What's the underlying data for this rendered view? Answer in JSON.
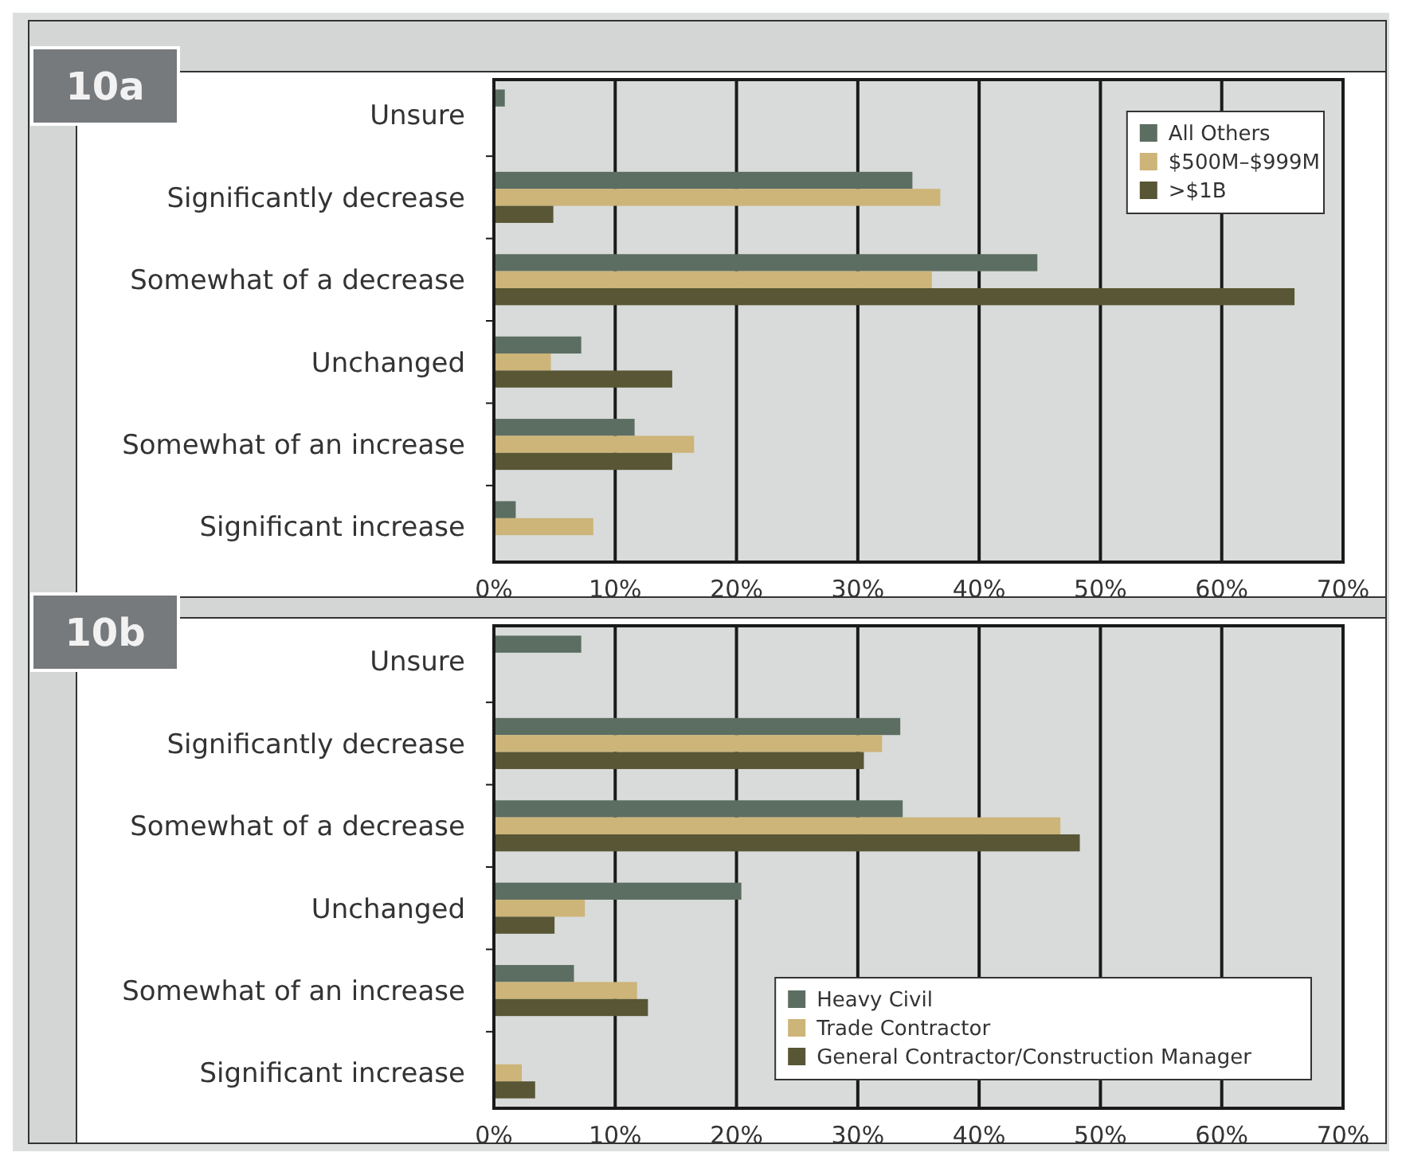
{
  "chart_data": [
    {
      "type": "bar",
      "orientation": "horizontal",
      "title": "10a",
      "categories": [
        "Unsure",
        "Significantly decrease",
        "Somewhat of a decrease",
        "Unchanged",
        "Somewhat of an increase",
        "Significant increase"
      ],
      "series": [
        {
          "name": "All Others",
          "color": "#5c6e62",
          "values": [
            0.9,
            34.5,
            44.8,
            7.2,
            11.6,
            1.8
          ]
        },
        {
          "name": "$500M–$999M",
          "color": "#cdb478",
          "values": [
            null,
            36.8,
            36.1,
            4.7,
            16.5,
            8.2
          ]
        },
        {
          "name": ">$1B",
          "color": "#585634",
          "values": [
            null,
            4.9,
            66.0,
            14.7,
            14.7,
            null
          ]
        }
      ],
      "xlim": [
        0,
        70
      ],
      "xticks": [
        {
          "value": 0,
          "label": "0%"
        },
        {
          "value": 10,
          "label": "10%"
        },
        {
          "value": 20,
          "label": "20%"
        },
        {
          "value": 30,
          "label": "30%"
        },
        {
          "value": 40,
          "label": "40%"
        },
        {
          "value": 50,
          "label": "50%"
        },
        {
          "value": 60,
          "label": "60%"
        },
        {
          "value": 70,
          "label": "70%"
        }
      ],
      "grid": "x",
      "legend": "top right"
    },
    {
      "type": "bar",
      "orientation": "horizontal",
      "title": "10b",
      "categories": [
        "Unsure",
        "Significantly decrease",
        "Somewhat of a decrease",
        "Unchanged",
        "Somewhat of an increase",
        "Significant increase"
      ],
      "series": [
        {
          "name": "Heavy Civil",
          "color": "#5c6e62",
          "values": [
            7.2,
            33.5,
            33.7,
            20.4,
            6.6,
            null
          ]
        },
        {
          "name": "Trade Contractor",
          "color": "#cdb478",
          "values": [
            null,
            32.0,
            46.7,
            7.5,
            11.8,
            2.3
          ]
        },
        {
          "name": "General Contractor/Construction Manager",
          "color": "#585634",
          "values": [
            null,
            30.5,
            48.3,
            5.0,
            12.7,
            3.4
          ]
        }
      ],
      "xlim": [
        0,
        70
      ],
      "xticks": [
        {
          "value": 0,
          "label": "0%"
        },
        {
          "value": 10,
          "label": "10%"
        },
        {
          "value": 20,
          "label": "20%"
        },
        {
          "value": 30,
          "label": "30%"
        },
        {
          "value": 40,
          "label": "40%"
        },
        {
          "value": 50,
          "label": "50%"
        },
        {
          "value": 60,
          "label": "60%"
        },
        {
          "value": 70,
          "label": "70%"
        }
      ],
      "grid": "x",
      "legend": "bottom right"
    }
  ]
}
